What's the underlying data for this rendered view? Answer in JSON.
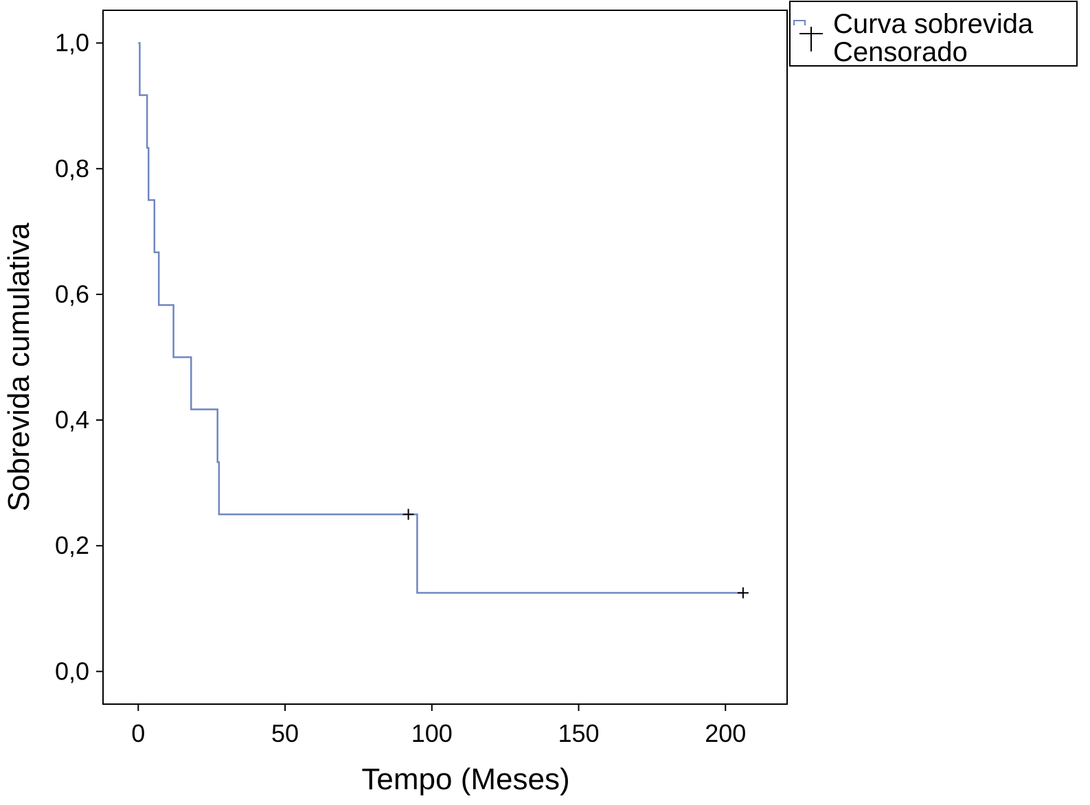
{
  "chart_data": {
    "type": "line",
    "title": "",
    "xlabel": "Tempo (Meses)",
    "ylabel": "Sobrevida cumulativa",
    "xlim": [
      -12,
      221
    ],
    "ylim": [
      -0.052,
      1.052
    ],
    "x_ticks": [
      0,
      50,
      100,
      150,
      200
    ],
    "x_tick_labels": [
      "0",
      "50",
      "100",
      "150",
      "200"
    ],
    "y_ticks": [
      0.0,
      0.2,
      0.4,
      0.6,
      0.8,
      1.0
    ],
    "y_tick_labels": [
      "0,0",
      "0,2",
      "0,4",
      "0,6",
      "0,8",
      "1,0"
    ],
    "grid": false,
    "legend_position": "top-right outside",
    "step_curve": "post",
    "series": [
      {
        "name": "Curva sobrevida",
        "color": "#6f86c0",
        "x": [
          0,
          0.5,
          2.5,
          3.0,
          3.5,
          5.0,
          5.5,
          7.0,
          12.0,
          18.0,
          27.0,
          27.5,
          95.0,
          206.0
        ],
        "y": [
          1.0,
          0.917,
          0.917,
          0.833,
          0.75,
          0.75,
          0.667,
          0.583,
          0.5,
          0.417,
          0.333,
          0.25,
          0.125,
          0.125
        ]
      }
    ],
    "censored": {
      "name": "Censorado",
      "color": "#000000",
      "points": [
        {
          "x": 92,
          "y": 0.25
        },
        {
          "x": 206,
          "y": 0.125
        }
      ]
    }
  }
}
